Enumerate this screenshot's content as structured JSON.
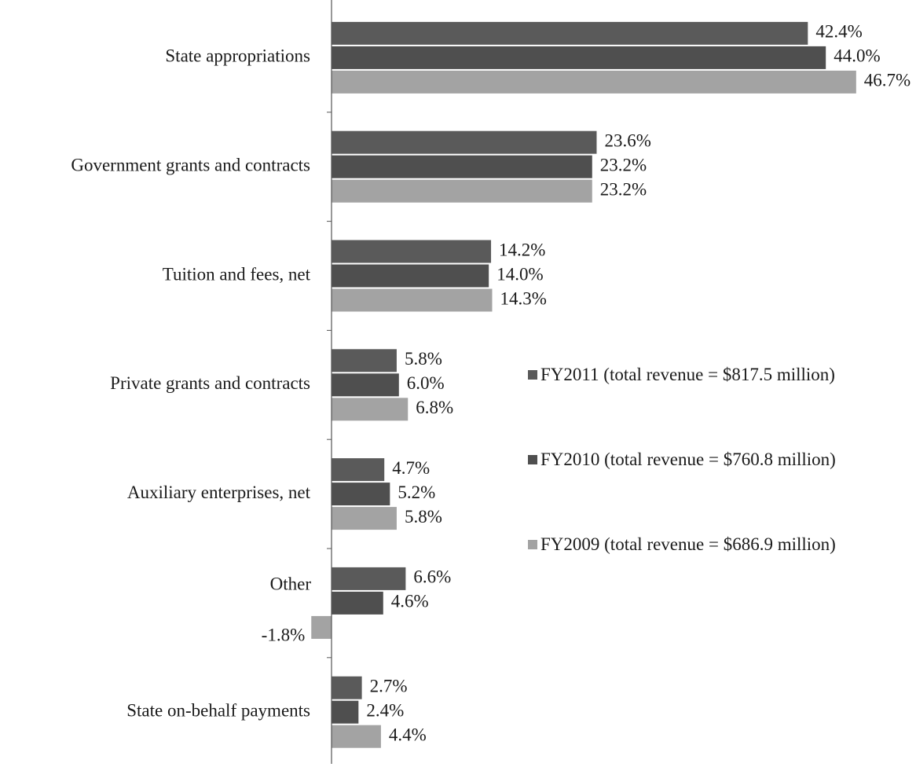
{
  "chart_data": {
    "type": "bar",
    "orientation": "horizontal",
    "categories": [
      "State appropriations",
      "Government grants and contracts",
      "Tuition and fees, net",
      "Private grants and contracts",
      "Auxiliary enterprises, net",
      "Other",
      "State on-behalf payments"
    ],
    "series": [
      {
        "name": "FY2011 (total revenue = $817.5 million)",
        "color": "#5a5a5a",
        "values": [
          42.4,
          23.6,
          14.2,
          5.8,
          4.7,
          6.6,
          2.7
        ],
        "value_labels": [
          "42.4%",
          "23.6%",
          "14.2%",
          "5.8%",
          "4.7%",
          "6.6%",
          "2.7%"
        ]
      },
      {
        "name": "FY2010 (total revenue = $760.8 million)",
        "color": "#4f4f4f",
        "values": [
          44.0,
          23.2,
          14.0,
          6.0,
          5.2,
          4.6,
          2.4
        ],
        "value_labels": [
          "44.0%",
          "23.2%",
          "14.0%",
          "6.0%",
          "5.2%",
          "4.6%",
          "2.4%"
        ]
      },
      {
        "name": "FY2009 (total revenue = $686.9 million)",
        "color": "#a3a3a3",
        "values": [
          46.7,
          23.2,
          14.3,
          6.8,
          5.8,
          -1.8,
          4.4
        ],
        "value_labels": [
          "46.7%",
          "23.2%",
          "14.3%",
          "6.8%",
          "5.8%",
          "-1.8%",
          "4.4%"
        ]
      }
    ],
    "legend": "right"
  }
}
